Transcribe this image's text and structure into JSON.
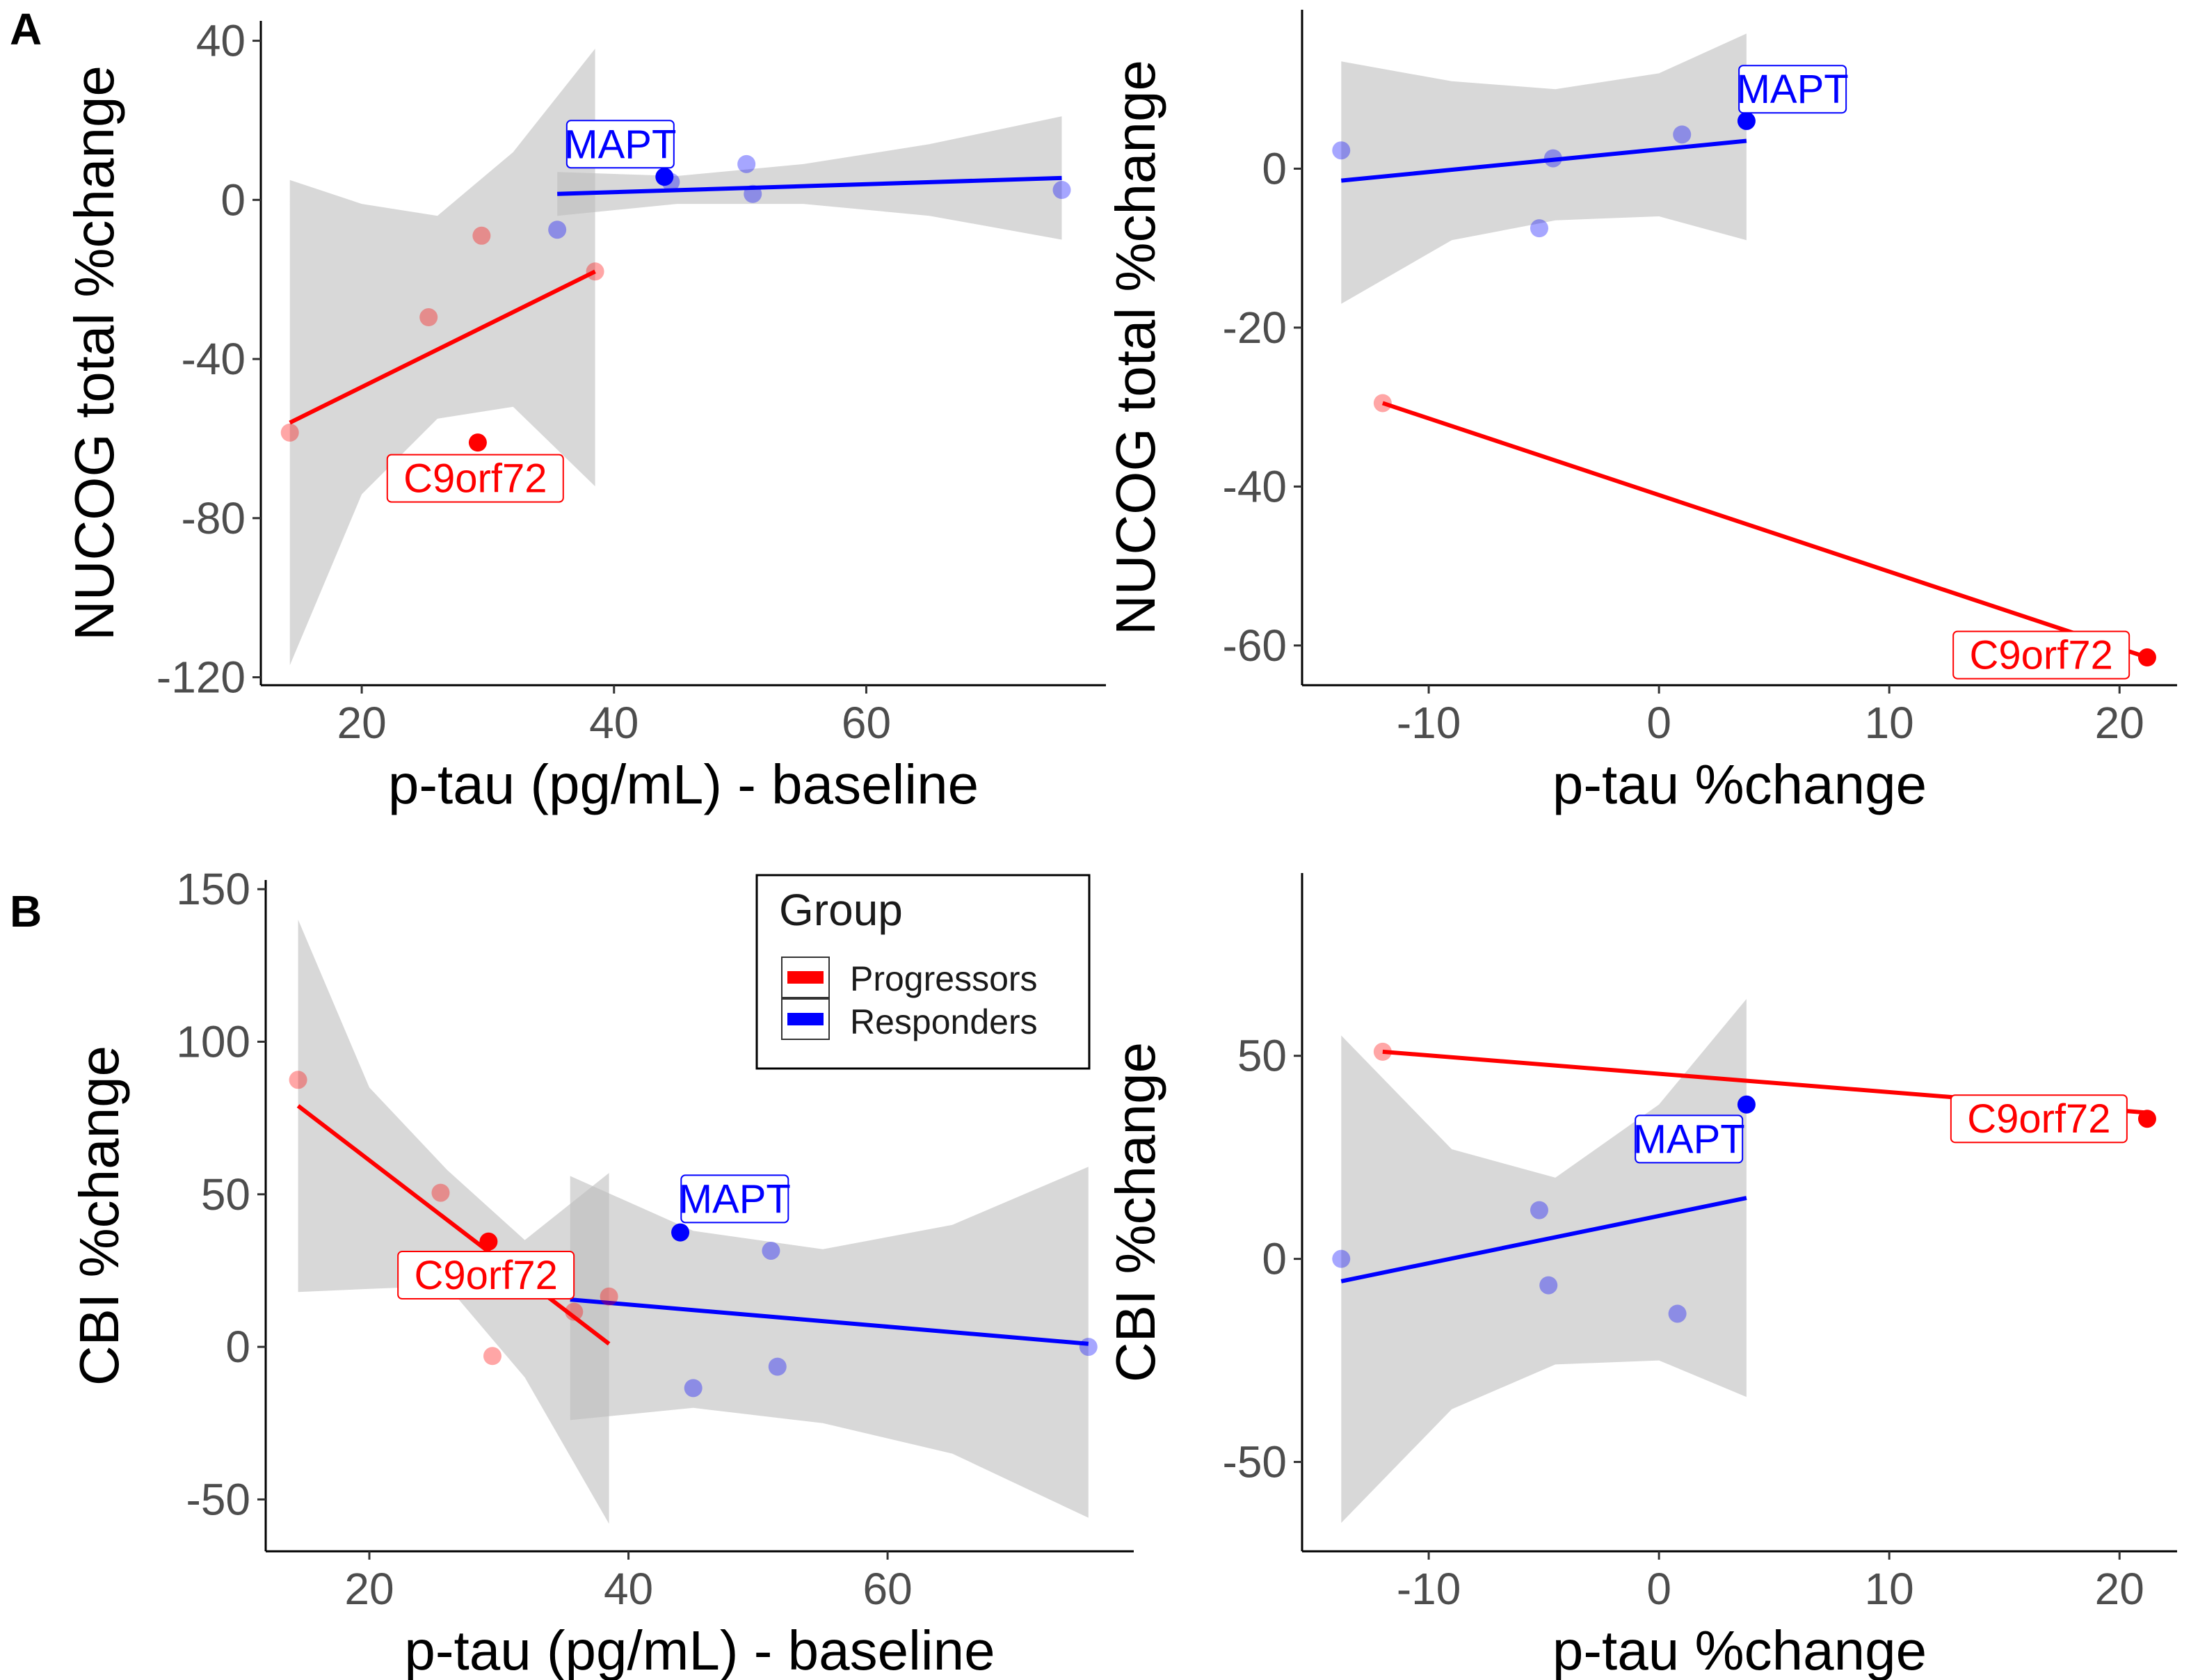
{
  "colors": {
    "progressors": "#ff0000",
    "responders": "#0000ff",
    "ribbon": "#bebebe",
    "highlight_prog": "#ff0000",
    "highlight_resp": "#0000ff"
  },
  "panel_letters": [
    "A",
    "B"
  ],
  "legend": {
    "title": "Group",
    "entries": [
      {
        "label": "Progressors",
        "color": "#ff0000"
      },
      {
        "label": "Responders",
        "color": "#0000ff"
      }
    ]
  },
  "chart_data": [
    {
      "type": "scatter",
      "panel": "A-left",
      "xlabel": "p-tau (pg/mL) - baseline",
      "ylabel": "NUCOG total %change",
      "xlim": [
        12,
        79
      ],
      "ylim": [
        -122,
        45
      ],
      "xticks": [
        20,
        40,
        60
      ],
      "yticks": [
        40,
        0,
        -40,
        -80,
        -120
      ],
      "ytick_labels": [
        "40",
        "0",
        "-40",
        "-80",
        "-120"
      ],
      "xtick_labels": [
        "20",
        "40",
        "60"
      ],
      "series": [
        {
          "name": "Progressors",
          "points": [
            [
              14.3,
              -58.5
            ],
            [
              25.3,
              -29.5
            ],
            [
              29.5,
              -9
            ],
            [
              38.5,
              -18
            ]
          ],
          "fit": {
            "x": [
              14.3,
              38.5
            ],
            "y": [
              -56,
              -18
            ]
          },
          "band": {
            "x": [
              14.3,
              20,
              26,
              32,
              38.5
            ],
            "upper": [
              5,
              -1,
              -4,
              12,
              38
            ],
            "lower": [
              -117,
              -74,
              -55,
              -52,
              -72
            ]
          }
        },
        {
          "name": "Responders",
          "points": [
            [
              35.5,
              -7.5
            ],
            [
              44.5,
              4.5
            ],
            [
              50.5,
              9
            ],
            [
              51,
              1.5
            ],
            [
              75.5,
              2.5
            ]
          ],
          "fit": {
            "x": [
              35.5,
              75.5
            ],
            "y": [
              1.5,
              5.5
            ]
          },
          "band": {
            "x": [
              35.5,
              45,
              55,
              65,
              75.5
            ],
            "upper": [
              7,
              6,
              9,
              14,
              21
            ],
            "lower": [
              -4,
              -1,
              -1,
              -4,
              -10
            ]
          }
        }
      ],
      "highlights": [
        {
          "label": "MAPT",
          "x": 44,
          "y": 5.8,
          "group": "Responders",
          "label_x": 40.5,
          "label_y": 14
        },
        {
          "label": "C9orf72",
          "x": 29.2,
          "y": -61,
          "group": "Progressors",
          "label_x": 29,
          "label_y": -70
        }
      ]
    },
    {
      "type": "scatter",
      "panel": "A-right",
      "xlabel": "p-tau %change",
      "ylabel": "NUCOG total %change",
      "xlim": [
        -15.5,
        22.5
      ],
      "ylim": [
        -65,
        20
      ],
      "xticks": [
        -10,
        0,
        10,
        20
      ],
      "yticks": [
        0,
        -20,
        -40,
        -60
      ],
      "ytick_labels": [
        "0",
        "-20",
        "-40",
        "-60"
      ],
      "xtick_labels": [
        "-10",
        "0",
        "10",
        "20"
      ],
      "series": [
        {
          "name": "Progressors",
          "points": [
            [
              -12,
              -29.5
            ]
          ],
          "fit": {
            "x": [
              -12,
              21.2
            ],
            "y": [
              -29.5,
              -61.5
            ]
          },
          "band": null
        },
        {
          "name": "Responders",
          "points": [
            [
              -13.8,
              2.3
            ],
            [
              -5.2,
              -7.5
            ],
            [
              -4.6,
              1.3
            ],
            [
              1,
              4.3
            ]
          ],
          "fit": {
            "x": [
              -13.8,
              3.8
            ],
            "y": [
              -1.5,
              3.5
            ]
          },
          "band": {
            "x": [
              -13.8,
              -9,
              -4.5,
              0,
              3.8
            ],
            "upper": [
              13.5,
              11,
              10,
              12,
              17
            ],
            "lower": [
              -17,
              -9,
              -6.5,
              -6,
              -9
            ]
          }
        }
      ],
      "highlights": [
        {
          "label": "MAPT",
          "x": 3.8,
          "y": 6,
          "group": "Responders",
          "label_x": 5.8,
          "label_y": 10
        },
        {
          "label": "C9orf72",
          "x": 21.2,
          "y": -61.5,
          "group": "Progressors",
          "label_x": 16.6,
          "label_y": -61.2
        }
      ]
    },
    {
      "type": "scatter",
      "panel": "B-left",
      "xlabel": "p-tau (pg/mL) - baseline",
      "ylabel": "CBI %change",
      "xlim": [
        12,
        79
      ],
      "ylim": [
        -67,
        153
      ],
      "xticks": [
        20,
        40,
        60
      ],
      "yticks": [
        150,
        100,
        50,
        0,
        -50
      ],
      "ytick_labels": [
        "150",
        "100",
        "50",
        "0",
        "-50"
      ],
      "xtick_labels": [
        "20",
        "40",
        "60"
      ],
      "series": [
        {
          "name": "Progressors",
          "points": [
            [
              14.5,
              87.5
            ],
            [
              25.5,
              50.5
            ],
            [
              29.5,
              -3
            ],
            [
              38.5,
              16.5
            ],
            [
              35.8,
              11.5
            ]
          ],
          "fit": {
            "x": [
              14.5,
              38.5
            ],
            "y": [
              79,
              1
            ]
          },
          "band": {
            "x": [
              14.5,
              20,
              26,
              32,
              38.5
            ],
            "upper": [
              140,
              85,
              58,
              35,
              57
            ],
            "lower": [
              18,
              19,
              20,
              -10,
              -58
            ]
          }
        },
        {
          "name": "Responders",
          "points": [
            [
              45,
              -13.5
            ],
            [
              51,
              31.5
            ],
            [
              51.5,
              -6.5
            ],
            [
              75.5,
              0
            ]
          ],
          "fit": {
            "x": [
              35.5,
              75.5
            ],
            "y": [
              15.5,
              1
            ]
          },
          "band": {
            "x": [
              35.5,
              45,
              55,
              65,
              75.5
            ],
            "upper": [
              56,
              38,
              32,
              40,
              59
            ],
            "lower": [
              -24,
              -20,
              -25,
              -35,
              -56
            ]
          }
        }
      ],
      "highlights": [
        {
          "label": "MAPT",
          "x": 44,
          "y": 37.5,
          "group": "Responders",
          "label_x": 48.2,
          "label_y": 48.5
        },
        {
          "label": "C9orf72",
          "x": 29.2,
          "y": 34.5,
          "group": "Progressors",
          "label_x": 29,
          "label_y": 23.5
        }
      ]
    },
    {
      "type": "scatter",
      "panel": "B-right",
      "xlabel": "p-tau %change",
      "ylabel": "CBI %change",
      "xlim": [
        -15.5,
        22.5
      ],
      "ylim": [
        -72,
        95
      ],
      "xticks": [
        -10,
        0,
        10,
        20
      ],
      "yticks": [
        50,
        0,
        -50
      ],
      "ytick_labels": [
        "50",
        "0",
        "-50"
      ],
      "xtick_labels": [
        "-10",
        "0",
        "10",
        "20"
      ],
      "series": [
        {
          "name": "Progressors",
          "points": [
            [
              -12,
              51
            ]
          ],
          "fit": {
            "x": [
              -12,
              21.2
            ],
            "y": [
              51,
              36
            ]
          },
          "band": null
        },
        {
          "name": "Responders",
          "points": [
            [
              -13.8,
              0
            ],
            [
              -5.2,
              12
            ],
            [
              -4.8,
              -6.5
            ],
            [
              0.8,
              -13.5
            ]
          ],
          "fit": {
            "x": [
              -13.8,
              3.8
            ],
            "y": [
              -5.5,
              15
            ]
          },
          "band": {
            "x": [
              -13.8,
              -9,
              -4.5,
              0,
              3.8
            ],
            "upper": [
              55,
              27,
              20,
              38,
              64
            ],
            "lower": [
              -65,
              -37,
              -26,
              -25,
              -34
            ]
          }
        }
      ],
      "highlights": [
        {
          "label": "MAPT",
          "x": 3.8,
          "y": 38,
          "group": "Responders",
          "label_x": 1.3,
          "label_y": 29.5
        },
        {
          "label": "C9orf72",
          "x": 21.2,
          "y": 34.5,
          "group": "Progressors",
          "label_x": 16.5,
          "label_y": 34.5
        }
      ]
    }
  ]
}
